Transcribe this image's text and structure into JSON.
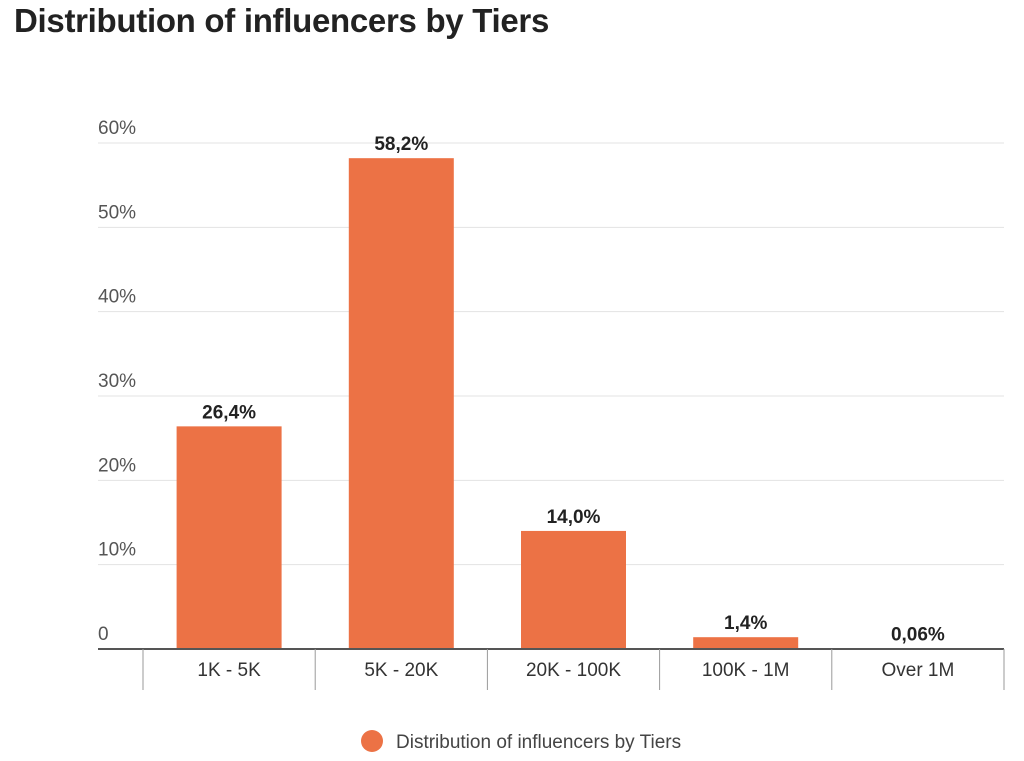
{
  "title": "Distribution of influencers by Tiers",
  "chart_data": {
    "type": "bar",
    "title": "Distribution of influencers by Tiers",
    "categories": [
      "1K - 5K",
      "5K - 20K",
      "20K - 100K",
      "100K - 1M",
      "Over 1M"
    ],
    "values": [
      26.4,
      58.2,
      14.0,
      1.4,
      0.06
    ],
    "value_labels": [
      "26,4%",
      "58,2%",
      "14,0%",
      "1,4%",
      "0,06%"
    ],
    "y_ticks": [
      0,
      10,
      20,
      30,
      40,
      50,
      60
    ],
    "y_tick_labels": [
      "0",
      "10%",
      "20%",
      "30%",
      "40%",
      "50%",
      "60%"
    ],
    "ylim": [
      0,
      60
    ],
    "xlabel": "",
    "ylabel": "",
    "grid": true,
    "legend": {
      "position": "bottom",
      "label": "Distribution of influencers by Tiers"
    },
    "colors": {
      "bar": "#EC7245",
      "grid": "#E3E3E3",
      "axis": "#555555"
    }
  }
}
